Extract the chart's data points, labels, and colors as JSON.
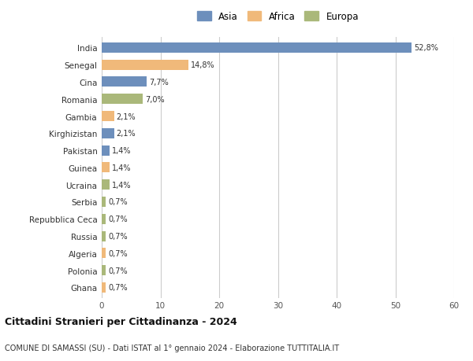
{
  "categories": [
    "India",
    "Senegal",
    "Cina",
    "Romania",
    "Gambia",
    "Kirghizistan",
    "Pakistan",
    "Guinea",
    "Ucraina",
    "Serbia",
    "Repubblica Ceca",
    "Russia",
    "Algeria",
    "Polonia",
    "Ghana"
  ],
  "values": [
    52.8,
    14.8,
    7.7,
    7.0,
    2.1,
    2.1,
    1.4,
    1.4,
    1.4,
    0.7,
    0.7,
    0.7,
    0.7,
    0.7,
    0.7
  ],
  "labels": [
    "52,8%",
    "14,8%",
    "7,7%",
    "7,0%",
    "2,1%",
    "2,1%",
    "1,4%",
    "1,4%",
    "1,4%",
    "0,7%",
    "0,7%",
    "0,7%",
    "0,7%",
    "0,7%",
    "0,7%"
  ],
  "colors": [
    "#6d8fbc",
    "#f0b97a",
    "#6d8fbc",
    "#aab87a",
    "#f0b97a",
    "#6d8fbc",
    "#6d8fbc",
    "#f0b97a",
    "#aab87a",
    "#aab87a",
    "#aab87a",
    "#aab87a",
    "#f0b97a",
    "#aab87a",
    "#f0b97a"
  ],
  "legend": [
    {
      "label": "Asia",
      "color": "#6d8fbc"
    },
    {
      "label": "Africa",
      "color": "#f0b97a"
    },
    {
      "label": "Europa",
      "color": "#aab87a"
    }
  ],
  "xlim": [
    0,
    60
  ],
  "xticks": [
    0,
    10,
    20,
    30,
    40,
    50,
    60
  ],
  "title": "Cittadini Stranieri per Cittadinanza - 2024",
  "subtitle": "COMUNE DI SAMASSI (SU) - Dati ISTAT al 1° gennaio 2024 - Elaborazione TUTTITALIA.IT",
  "background_color": "#ffffff",
  "grid_color": "#cccccc",
  "bar_height": 0.6
}
